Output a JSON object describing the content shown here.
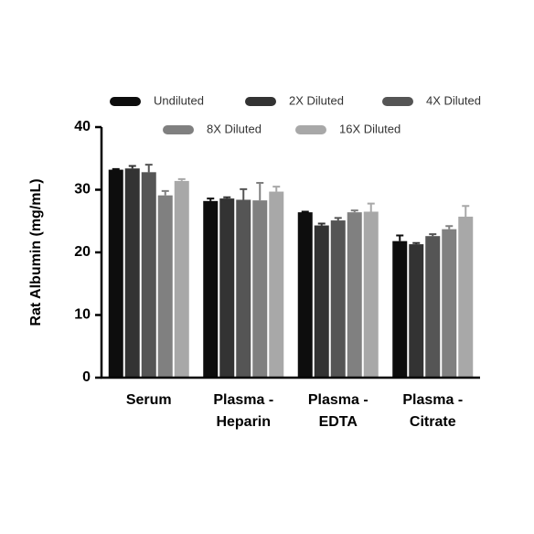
{
  "chart_data": {
    "type": "bar",
    "y_label": "Rat Albumin (mg/mL)",
    "categories": [
      "Serum",
      "Plasma -\nHeparin",
      "Plasma -\nEDTA",
      "Plasma -\nCitrate"
    ],
    "series": [
      {
        "name": "Undiluted",
        "color": "#0d0d0d",
        "values": [
          33.2,
          28.2,
          26.4,
          21.8
        ],
        "errors": [
          0.1,
          0.4,
          0.1,
          0.9
        ]
      },
      {
        "name": "2X Diluted",
        "color": "#333333",
        "values": [
          33.4,
          28.6,
          24.3,
          21.3
        ],
        "errors": [
          0.4,
          0.2,
          0.3,
          0.2
        ]
      },
      {
        "name": "4X Diluted",
        "color": "#555555",
        "values": [
          32.8,
          28.4,
          25.1,
          22.6
        ],
        "errors": [
          1.2,
          1.7,
          0.4,
          0.3
        ]
      },
      {
        "name": "8X Diluted",
        "color": "#808080",
        "values": [
          29.1,
          28.3,
          26.4,
          23.7
        ],
        "errors": [
          0.7,
          2.8,
          0.3,
          0.5
        ]
      },
      {
        "name": "16X Diluted",
        "color": "#a8a8a8",
        "values": [
          31.4,
          29.7,
          26.5,
          25.7
        ],
        "errors": [
          0.3,
          0.8,
          1.3,
          1.7
        ]
      }
    ],
    "ylim": [
      0,
      40
    ],
    "yticks": [
      0,
      10,
      20,
      30,
      40
    ]
  }
}
